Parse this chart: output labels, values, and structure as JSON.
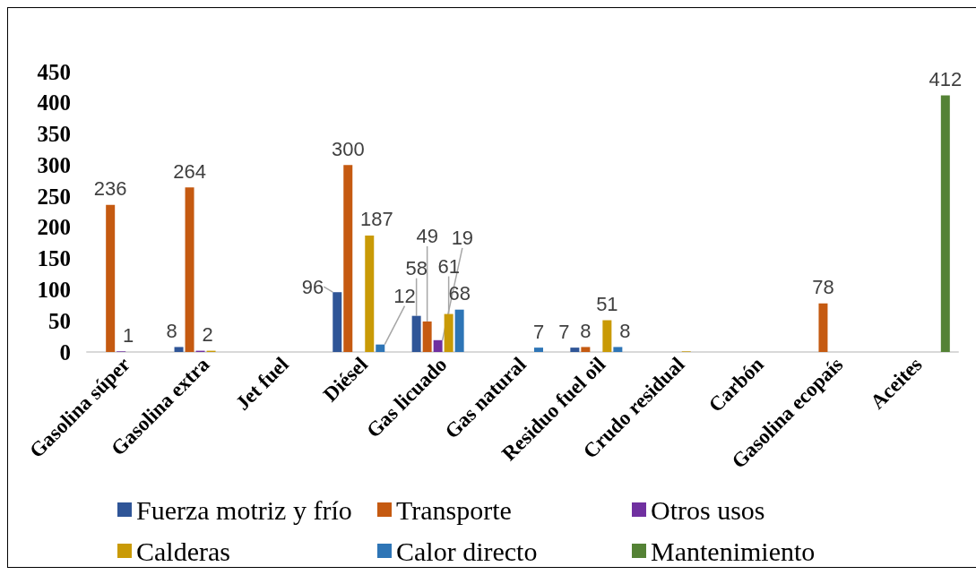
{
  "chart_data": {
    "type": "bar",
    "categories": [
      "Gasolina súper",
      "Gasolina extra",
      "Jet fuel",
      "Diésel",
      "Gas licuado",
      "Gas natural",
      "Residuo fuel oil",
      "Crudo residual",
      "Carbón",
      "Gasolina ecopaís",
      "Aceites"
    ],
    "series": [
      {
        "name": "Fuerza motriz y frío",
        "color": "#2f5597",
        "values": [
          null,
          8,
          null,
          96,
          58,
          null,
          7,
          null,
          null,
          null,
          null
        ],
        "value_labels": [
          null,
          "8",
          null,
          "96",
          "58",
          null,
          "7",
          null,
          null,
          null,
          null
        ]
      },
      {
        "name": "Transporte",
        "color": "#c55a11",
        "values": [
          236,
          264,
          null,
          300,
          49,
          null,
          8,
          null,
          null,
          78,
          null
        ],
        "value_labels": [
          "236",
          "264",
          null,
          "300",
          "49",
          null,
          "8",
          null,
          null,
          "78",
          null
        ]
      },
      {
        "name": "Otros usos",
        "color": "#7030a0",
        "values": [
          1,
          2,
          null,
          null,
          19,
          null,
          null,
          null,
          null,
          null,
          null
        ],
        "value_labels": [
          "1",
          "2",
          null,
          null,
          "19",
          null,
          null,
          null,
          null,
          null,
          null
        ]
      },
      {
        "name": "Calderas",
        "color": "#c99a06",
        "values": [
          null,
          2,
          null,
          187,
          61,
          null,
          51,
          1,
          null,
          null,
          null
        ],
        "value_labels": [
          null,
          null,
          null,
          "187",
          "61",
          null,
          "51",
          null,
          null,
          null,
          null
        ]
      },
      {
        "name": "Calor directo",
        "color": "#2e75b6",
        "values": [
          null,
          null,
          null,
          12,
          68,
          7,
          8,
          null,
          null,
          null,
          null
        ],
        "value_labels": [
          null,
          null,
          null,
          "12",
          "68",
          "7",
          "8",
          null,
          null,
          null,
          null
        ]
      },
      {
        "name": "Mantenimiento",
        "color": "#548235",
        "values": [
          null,
          null,
          null,
          null,
          null,
          null,
          null,
          null,
          null,
          null,
          412
        ],
        "value_labels": [
          null,
          null,
          null,
          null,
          null,
          null,
          null,
          null,
          null,
          null,
          "412"
        ]
      }
    ],
    "ylim": [
      0,
      450
    ],
    "yticks": [
      0,
      50,
      100,
      150,
      200,
      250,
      300,
      350,
      400,
      450
    ],
    "legend": "bottom"
  }
}
